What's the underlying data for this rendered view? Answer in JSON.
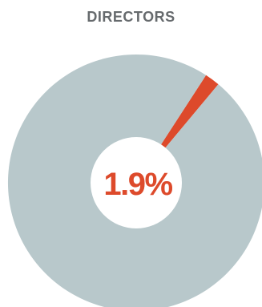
{
  "chart_data": {
    "type": "pie",
    "title": "DIRECTORS",
    "slices": [
      {
        "value": 1.9,
        "color": "#dd4a2b"
      },
      {
        "value": 98.1,
        "color": "#b8c8cb"
      }
    ],
    "center_label": "1.9%",
    "center_label_color": "#dd4a2b",
    "center_hole_color": "#ffffff"
  }
}
